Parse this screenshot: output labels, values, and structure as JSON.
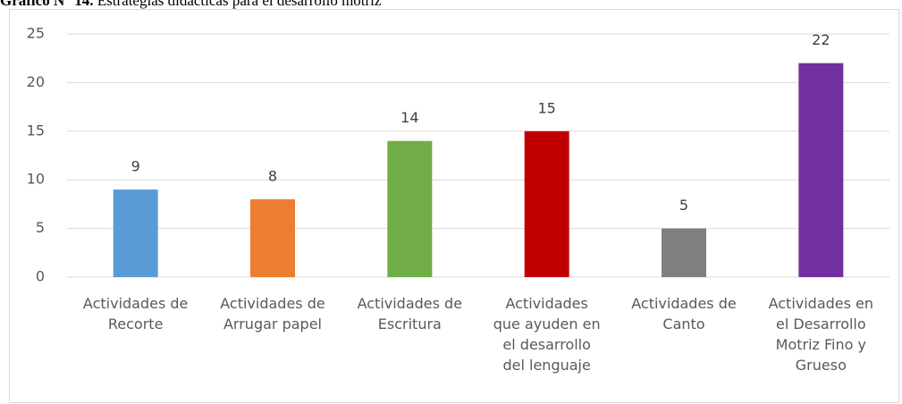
{
  "chart_data": {
    "type": "bar",
    "figure_label": "Gráfico N° 14.",
    "title": "Estrategias didácticas para el desarrollo motriz",
    "categories": [
      "Actividades de\nRecorte",
      "Actividades de\nArrugar papel",
      "Actividades de\nEscritura",
      "Actividades\nque ayuden en\nel desarrollo\ndel lenguaje",
      "Actividades de\nCanto",
      "Actividades en\nel Desarrollo\nMotriz Fino y\nGrueso"
    ],
    "values": [
      9,
      8,
      14,
      15,
      5,
      22
    ],
    "colors": [
      "#5b9bd5",
      "#ed7d31",
      "#70ad47",
      "#c00000",
      "#7f7f7f",
      "#7030a0"
    ],
    "ylim": [
      0,
      25
    ],
    "yticks": [
      0,
      5,
      10,
      15,
      20,
      25
    ],
    "grid": true
  }
}
